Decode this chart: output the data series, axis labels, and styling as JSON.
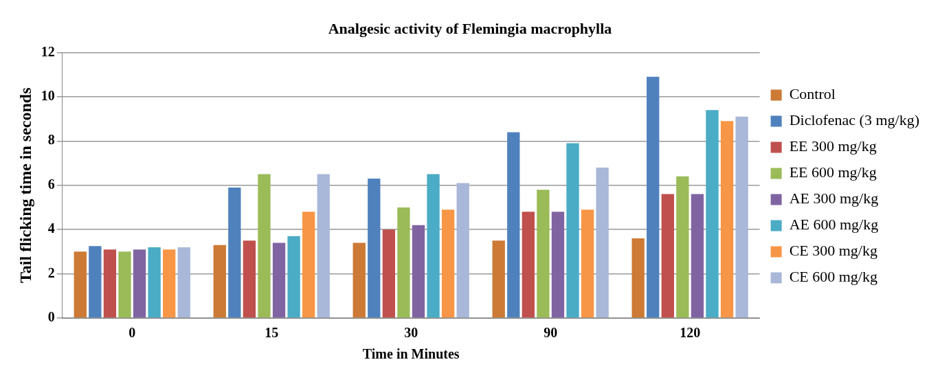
{
  "chart_data": {
    "type": "bar",
    "title": "Analgesic activity of Flemingia macrophylla",
    "xlabel": "Time in Minutes",
    "ylabel": "Tail flicking time in seconds",
    "categories": [
      "0",
      "15",
      "30",
      "90",
      "120"
    ],
    "series": [
      {
        "name": "Control",
        "color": "#cc7a35",
        "values": [
          3.0,
          3.3,
          3.4,
          3.5,
          3.6
        ]
      },
      {
        "name": "Diclofenac (3 mg/kg)",
        "color": "#4f81bd",
        "values": [
          3.25,
          5.9,
          6.3,
          8.4,
          10.9
        ]
      },
      {
        "name": "EE 300 mg/kg",
        "color": "#c0504d",
        "values": [
          3.1,
          3.5,
          4.0,
          4.8,
          5.6
        ]
      },
      {
        "name": "EE 600 mg/kg",
        "color": "#9bbb59",
        "values": [
          3.0,
          6.5,
          5.0,
          5.8,
          6.4
        ]
      },
      {
        "name": "AE 300 mg/kg",
        "color": "#8064a2",
        "values": [
          3.1,
          3.4,
          4.2,
          4.8,
          5.6
        ]
      },
      {
        "name": "AE 600 mg/kg",
        "color": "#4bacc6",
        "values": [
          3.2,
          3.7,
          6.5,
          7.9,
          9.4
        ]
      },
      {
        "name": "CE 300 mg/kg",
        "color": "#f79646",
        "values": [
          3.1,
          4.8,
          4.9,
          4.9,
          8.9
        ]
      },
      {
        "name": "CE 600 mg/kg",
        "color": "#a9b8d8",
        "values": [
          3.2,
          6.5,
          6.1,
          6.8,
          9.1
        ]
      }
    ],
    "ylim": [
      0,
      12
    ],
    "yticks": [
      0,
      2,
      4,
      6,
      8,
      10,
      12
    ],
    "grid": "y",
    "legend": "right"
  }
}
